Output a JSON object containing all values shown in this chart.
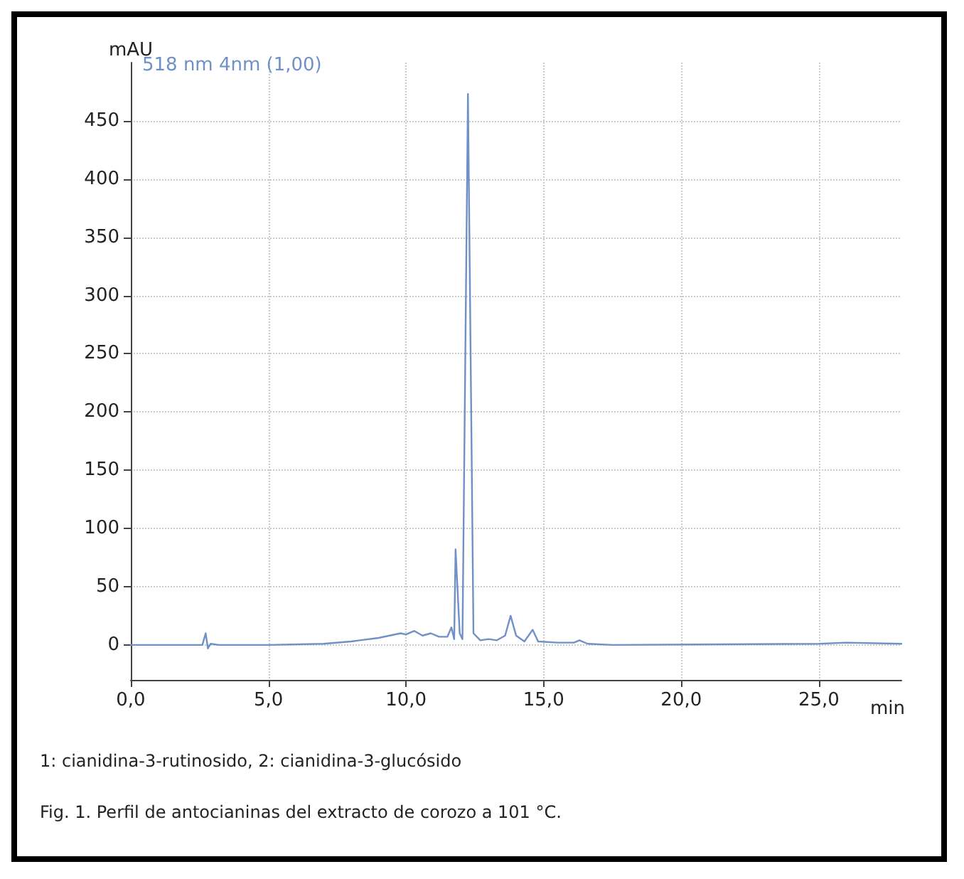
{
  "chart_data": {
    "type": "line",
    "title": "Fig. 1. Perfil de antocianinas del extracto de corozo a 101 °C.",
    "xlabel": "min",
    "ylabel": "mAU",
    "annotations": [
      "1: cianidina-3-rutinosido, 2: cianidina-3-glucósido"
    ],
    "series": [
      {
        "name": "518 nm 4nm (1,00)",
        "color": "#7090c8",
        "x": [
          0,
          2.6,
          2.72,
          2.8,
          2.9,
          3.2,
          5,
          7,
          8,
          9,
          9.8,
          10.0,
          10.3,
          10.6,
          10.9,
          11.2,
          11.5,
          11.65,
          11.75,
          11.8,
          11.95,
          12.05,
          12.25,
          12.45,
          12.7,
          13.0,
          13.3,
          13.6,
          13.8,
          14.0,
          14.3,
          14.6,
          14.8,
          15.5,
          16.1,
          16.3,
          16.6,
          17.5,
          25,
          26,
          28
        ],
        "values": [
          0,
          0,
          10,
          -3,
          1,
          0,
          0,
          1,
          3,
          6,
          10,
          9,
          12,
          8,
          10,
          7,
          7,
          15,
          5,
          82,
          10,
          5,
          473,
          10,
          4,
          5,
          4,
          8,
          25,
          8,
          3,
          13,
          3,
          2,
          2,
          4,
          1,
          0,
          1,
          2,
          1
        ]
      }
    ],
    "xlim": [
      0,
      28
    ],
    "ylim": [
      -30,
      500
    ],
    "xticks": [
      {
        "value": 0,
        "label": "0,0"
      },
      {
        "value": 5,
        "label": "5,0"
      },
      {
        "value": 10,
        "label": "10,0"
      },
      {
        "value": 15,
        "label": "15,0"
      },
      {
        "value": 20,
        "label": "20,0"
      },
      {
        "value": 25,
        "label": "25,0"
      }
    ],
    "yticks": [
      0,
      50,
      100,
      150,
      200,
      250,
      300,
      350,
      400,
      450
    ],
    "grid": true,
    "legend": "top left",
    "marker": "none",
    "line_style": "solid"
  }
}
